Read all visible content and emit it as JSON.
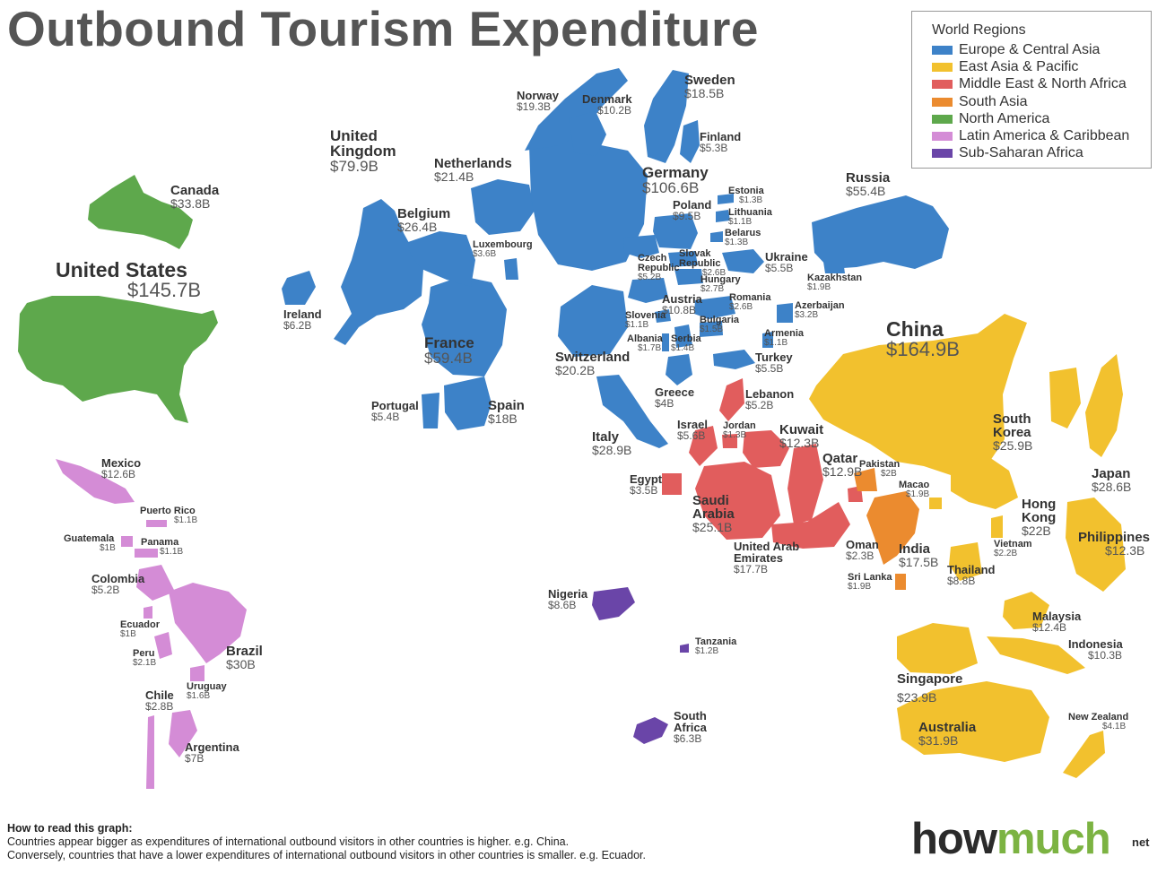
{
  "title": "Outbound Tourism Expenditure",
  "legend": {
    "title": "World Regions",
    "items": [
      {
        "label": "Europe & Central Asia",
        "color": "#3d82c8"
      },
      {
        "label": "East Asia & Pacific",
        "color": "#f2c12e"
      },
      {
        "label": "Middle East & North Africa",
        "color": "#e15d5d"
      },
      {
        "label": "South Asia",
        "color": "#eb8b2f"
      },
      {
        "label": "North America",
        "color": "#5ea84c"
      },
      {
        "label": "Latin America & Caribbean",
        "color": "#d48cd6"
      },
      {
        "label": "Sub-Saharan Africa",
        "color": "#6a45a8"
      }
    ]
  },
  "countries": [
    {
      "name": "United States",
      "value": "$145.7B",
      "region": "North America"
    },
    {
      "name": "Canada",
      "value": "$33.8B",
      "region": "North America"
    },
    {
      "name": "United Kingdom",
      "value": "$79.9B",
      "region": "Europe & Central Asia"
    },
    {
      "name": "Ireland",
      "value": "$6.2B",
      "region": "Europe & Central Asia"
    },
    {
      "name": "Norway",
      "value": "$19.3B",
      "region": "Europe & Central Asia"
    },
    {
      "name": "Denmark",
      "value": "$10.2B",
      "region": "Europe & Central Asia"
    },
    {
      "name": "Sweden",
      "value": "$18.5B",
      "region": "Europe & Central Asia"
    },
    {
      "name": "Finland",
      "value": "$5.3B",
      "region": "Europe & Central Asia"
    },
    {
      "name": "Netherlands",
      "value": "$21.4B",
      "region": "Europe & Central Asia"
    },
    {
      "name": "Germany",
      "value": "$106.6B",
      "region": "Europe & Central Asia"
    },
    {
      "name": "Estonia",
      "value": "$1.3B",
      "region": "Europe & Central Asia"
    },
    {
      "name": "Poland",
      "value": "$9.5B",
      "region": "Europe & Central Asia"
    },
    {
      "name": "Lithuania",
      "value": "$1.1B",
      "region": "Europe & Central Asia"
    },
    {
      "name": "Belarus",
      "value": "$1.3B",
      "region": "Europe & Central Asia"
    },
    {
      "name": "Russia",
      "value": "$55.4B",
      "region": "Europe & Central Asia"
    },
    {
      "name": "Belgium",
      "value": "$26.4B",
      "region": "Europe & Central Asia"
    },
    {
      "name": "Luxembourg",
      "value": "$3.6B",
      "region": "Europe & Central Asia"
    },
    {
      "name": "Czech Republic",
      "value": "$5.2B",
      "region": "Europe & Central Asia"
    },
    {
      "name": "Slovak Republic",
      "value": "$2.6B",
      "region": "Europe & Central Asia"
    },
    {
      "name": "Ukraine",
      "value": "$5.5B",
      "region": "Europe & Central Asia"
    },
    {
      "name": "Kazakhstan",
      "value": "$1.9B",
      "region": "Europe & Central Asia"
    },
    {
      "name": "Hungary",
      "value": "$2.7B",
      "region": "Europe & Central Asia"
    },
    {
      "name": "Austria",
      "value": "$10.8B",
      "region": "Europe & Central Asia"
    },
    {
      "name": "Romania",
      "value": "$2.6B",
      "region": "Europe & Central Asia"
    },
    {
      "name": "Azerbaijan",
      "value": "$3.2B",
      "region": "Europe & Central Asia"
    },
    {
      "name": "Slovenia",
      "value": "$1.1B",
      "region": "Europe & Central Asia"
    },
    {
      "name": "Bulgaria",
      "value": "$1.5B",
      "region": "Europe & Central Asia"
    },
    {
      "name": "Armenia",
      "value": "$1.1B",
      "region": "Europe & Central Asia"
    },
    {
      "name": "Albania",
      "value": "$1.7B",
      "region": "Europe & Central Asia"
    },
    {
      "name": "Serbia",
      "value": "$1.4B",
      "region": "Europe & Central Asia"
    },
    {
      "name": "Turkey",
      "value": "$5.5B",
      "region": "Europe & Central Asia"
    },
    {
      "name": "France",
      "value": "$59.4B",
      "region": "Europe & Central Asia"
    },
    {
      "name": "Switzerland",
      "value": "$20.2B",
      "region": "Europe & Central Asia"
    },
    {
      "name": "Portugal",
      "value": "$5.4B",
      "region": "Europe & Central Asia"
    },
    {
      "name": "Spain",
      "value": "$18B",
      "region": "Europe & Central Asia"
    },
    {
      "name": "Greece",
      "value": "$4B",
      "region": "Europe & Central Asia"
    },
    {
      "name": "Italy",
      "value": "$28.9B",
      "region": "Europe & Central Asia"
    },
    {
      "name": "Lebanon",
      "value": "$5.2B",
      "region": "Middle East & North Africa"
    },
    {
      "name": "Israel",
      "value": "$5.6B",
      "region": "Middle East & North Africa"
    },
    {
      "name": "Jordan",
      "value": "$1.3B",
      "region": "Middle East & North Africa"
    },
    {
      "name": "Kuwait",
      "value": "$12.3B",
      "region": "Middle East & North Africa"
    },
    {
      "name": "Egypt",
      "value": "$3.5B",
      "region": "Middle East & North Africa"
    },
    {
      "name": "Qatar",
      "value": "$12.9B",
      "region": "Middle East & North Africa"
    },
    {
      "name": "Saudi Arabia",
      "value": "$25.1B",
      "region": "Middle East & North Africa"
    },
    {
      "name": "United Arab Emirates",
      "value": "$17.7B",
      "region": "Middle East & North Africa"
    },
    {
      "name": "Oman",
      "value": "$2.3B",
      "region": "Middle East & North Africa"
    },
    {
      "name": "Pakistan",
      "value": "$2B",
      "region": "South Asia"
    },
    {
      "name": "India",
      "value": "$17.5B",
      "region": "South Asia"
    },
    {
      "name": "Sri Lanka",
      "value": "$1.9B",
      "region": "South Asia"
    },
    {
      "name": "China",
      "value": "$164.9B",
      "region": "East Asia & Pacific"
    },
    {
      "name": "South Korea",
      "value": "$25.9B",
      "region": "East Asia & Pacific"
    },
    {
      "name": "Japan",
      "value": "$28.6B",
      "region": "East Asia & Pacific"
    },
    {
      "name": "Macao",
      "value": "$1.9B",
      "region": "East Asia & Pacific"
    },
    {
      "name": "Hong Kong",
      "value": "$22B",
      "region": "East Asia & Pacific"
    },
    {
      "name": "Vietnam",
      "value": "$2.2B",
      "region": "East Asia & Pacific"
    },
    {
      "name": "Philippines",
      "value": "$12.3B",
      "region": "East Asia & Pacific"
    },
    {
      "name": "Thailand",
      "value": "$8.8B",
      "region": "East Asia & Pacific"
    },
    {
      "name": "Malaysia",
      "value": "$12.4B",
      "region": "East Asia & Pacific"
    },
    {
      "name": "Indonesia",
      "value": "$10.3B",
      "region": "East Asia & Pacific"
    },
    {
      "name": "Singapore",
      "value": "$23.9B",
      "region": "East Asia & Pacific"
    },
    {
      "name": "Australia",
      "value": "$31.9B",
      "region": "East Asia & Pacific"
    },
    {
      "name": "New Zealand",
      "value": "$4.1B",
      "region": "East Asia & Pacific"
    },
    {
      "name": "Mexico",
      "value": "$12.6B",
      "region": "Latin America & Caribbean"
    },
    {
      "name": "Puerto Rico",
      "value": "$1.1B",
      "region": "Latin America & Caribbean"
    },
    {
      "name": "Guatemala",
      "value": "$1B",
      "region": "Latin America & Caribbean"
    },
    {
      "name": "Panama",
      "value": "$1.1B",
      "region": "Latin America & Caribbean"
    },
    {
      "name": "Colombia",
      "value": "$5.2B",
      "region": "Latin America & Caribbean"
    },
    {
      "name": "Ecuador",
      "value": "$1B",
      "region": "Latin America & Caribbean"
    },
    {
      "name": "Peru",
      "value": "$2.1B",
      "region": "Latin America & Caribbean"
    },
    {
      "name": "Brazil",
      "value": "$30B",
      "region": "Latin America & Caribbean"
    },
    {
      "name": "Uruguay",
      "value": "$1.6B",
      "region": "Latin America & Caribbean"
    },
    {
      "name": "Chile",
      "value": "$2.8B",
      "region": "Latin America & Caribbean"
    },
    {
      "name": "Argentina",
      "value": "$7B",
      "region": "Latin America & Caribbean"
    },
    {
      "name": "Nigeria",
      "value": "$8.6B",
      "region": "Sub-Saharan Africa"
    },
    {
      "name": "Tanzania",
      "value": "$1.2B",
      "region": "Sub-Saharan Africa"
    },
    {
      "name": "South Africa",
      "value": "$6.3B",
      "region": "Sub-Saharan Africa"
    }
  ],
  "footer": {
    "heading": "How to read this graph:",
    "line1": "Countries appear bigger as expenditures of international outbound visitors in other countries is higher. e.g. China.",
    "line2": "Conversely, countries that have a lower expenditures of international outbound visitors in other countries is smaller. e.g. Ecuador."
  },
  "logo": {
    "part1": "how",
    "part2": "much",
    "suffix": "net"
  }
}
